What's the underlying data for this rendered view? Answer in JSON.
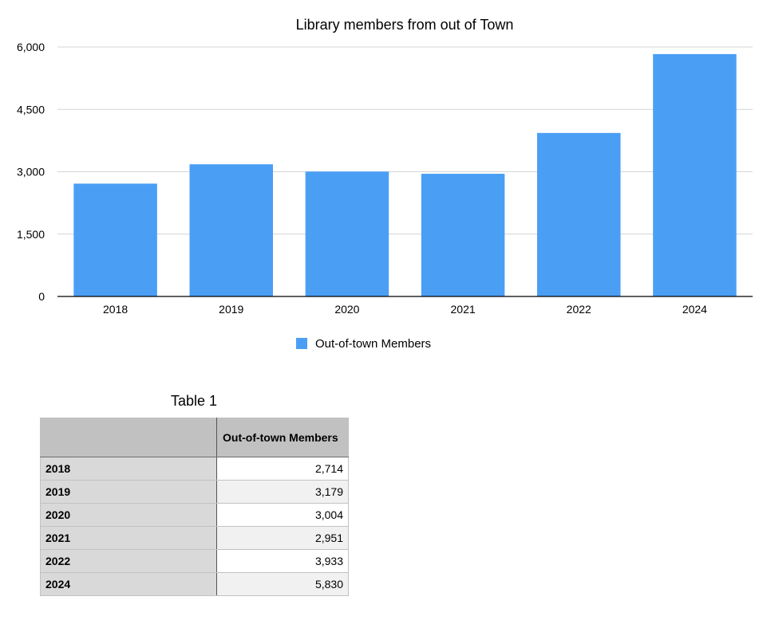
{
  "chart_data": {
    "type": "bar",
    "title": "Library members from out of Town",
    "categories": [
      "2018",
      "2019",
      "2020",
      "2021",
      "2022",
      "2024"
    ],
    "series": [
      {
        "name": "Out-of-town Members",
        "values": [
          2714,
          3179,
          3004,
          2951,
          3933,
          5830
        ]
      }
    ],
    "xlabel": "",
    "ylabel": "",
    "ylim": [
      0,
      6000
    ],
    "yticks": [
      "0",
      "1,500",
      "3,000",
      "4,500",
      "6,000"
    ],
    "grid": true,
    "legend": "bottom",
    "color": "#4a9ff5"
  },
  "table": {
    "title": "Table 1",
    "header": [
      "",
      "Out-of-town Members"
    ],
    "rows": [
      {
        "label": "2018",
        "value": "2,714"
      },
      {
        "label": "2019",
        "value": "3,179"
      },
      {
        "label": "2020",
        "value": "3,004"
      },
      {
        "label": "2021",
        "value": "2,951"
      },
      {
        "label": "2022",
        "value": "3,933"
      },
      {
        "label": "2024",
        "value": "5,830"
      }
    ]
  }
}
